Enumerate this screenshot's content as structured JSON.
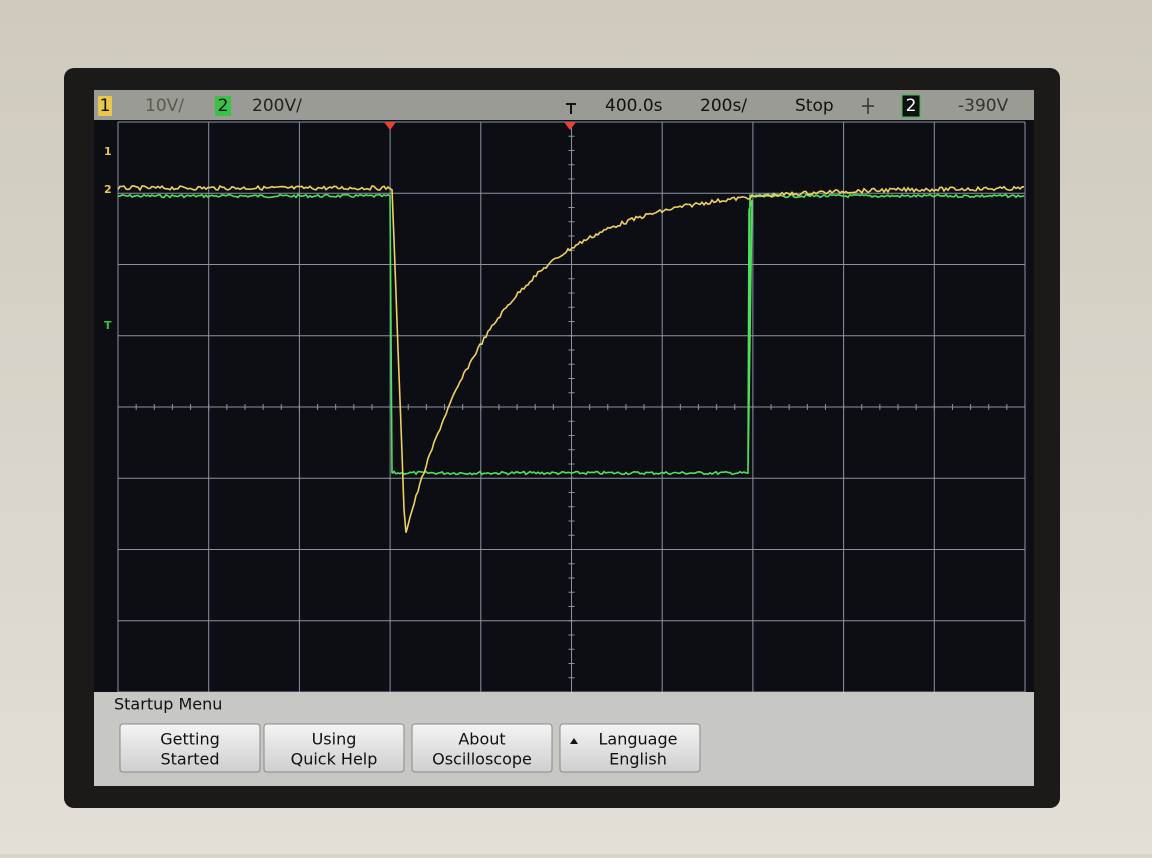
{
  "status_bar": {
    "ch1": "1",
    "ch1_scale": "10V/",
    "ch2": "2",
    "ch2_scale": "200V/",
    "delay": "400.0s",
    "timebase": "200s/",
    "run_state": "Stop",
    "trigger_source": "2",
    "trigger_level": "-390V"
  },
  "markers": [
    "1",
    "2",
    "T"
  ],
  "menu": {
    "title": "Startup Menu",
    "softkeys": [
      {
        "line1": "Getting",
        "line2": "Started"
      },
      {
        "line1": "Using",
        "line2": "Quick Help"
      },
      {
        "line1": "About",
        "line2": "Oscilloscope"
      },
      {
        "line1": "Language",
        "line2": "English"
      }
    ]
  }
}
